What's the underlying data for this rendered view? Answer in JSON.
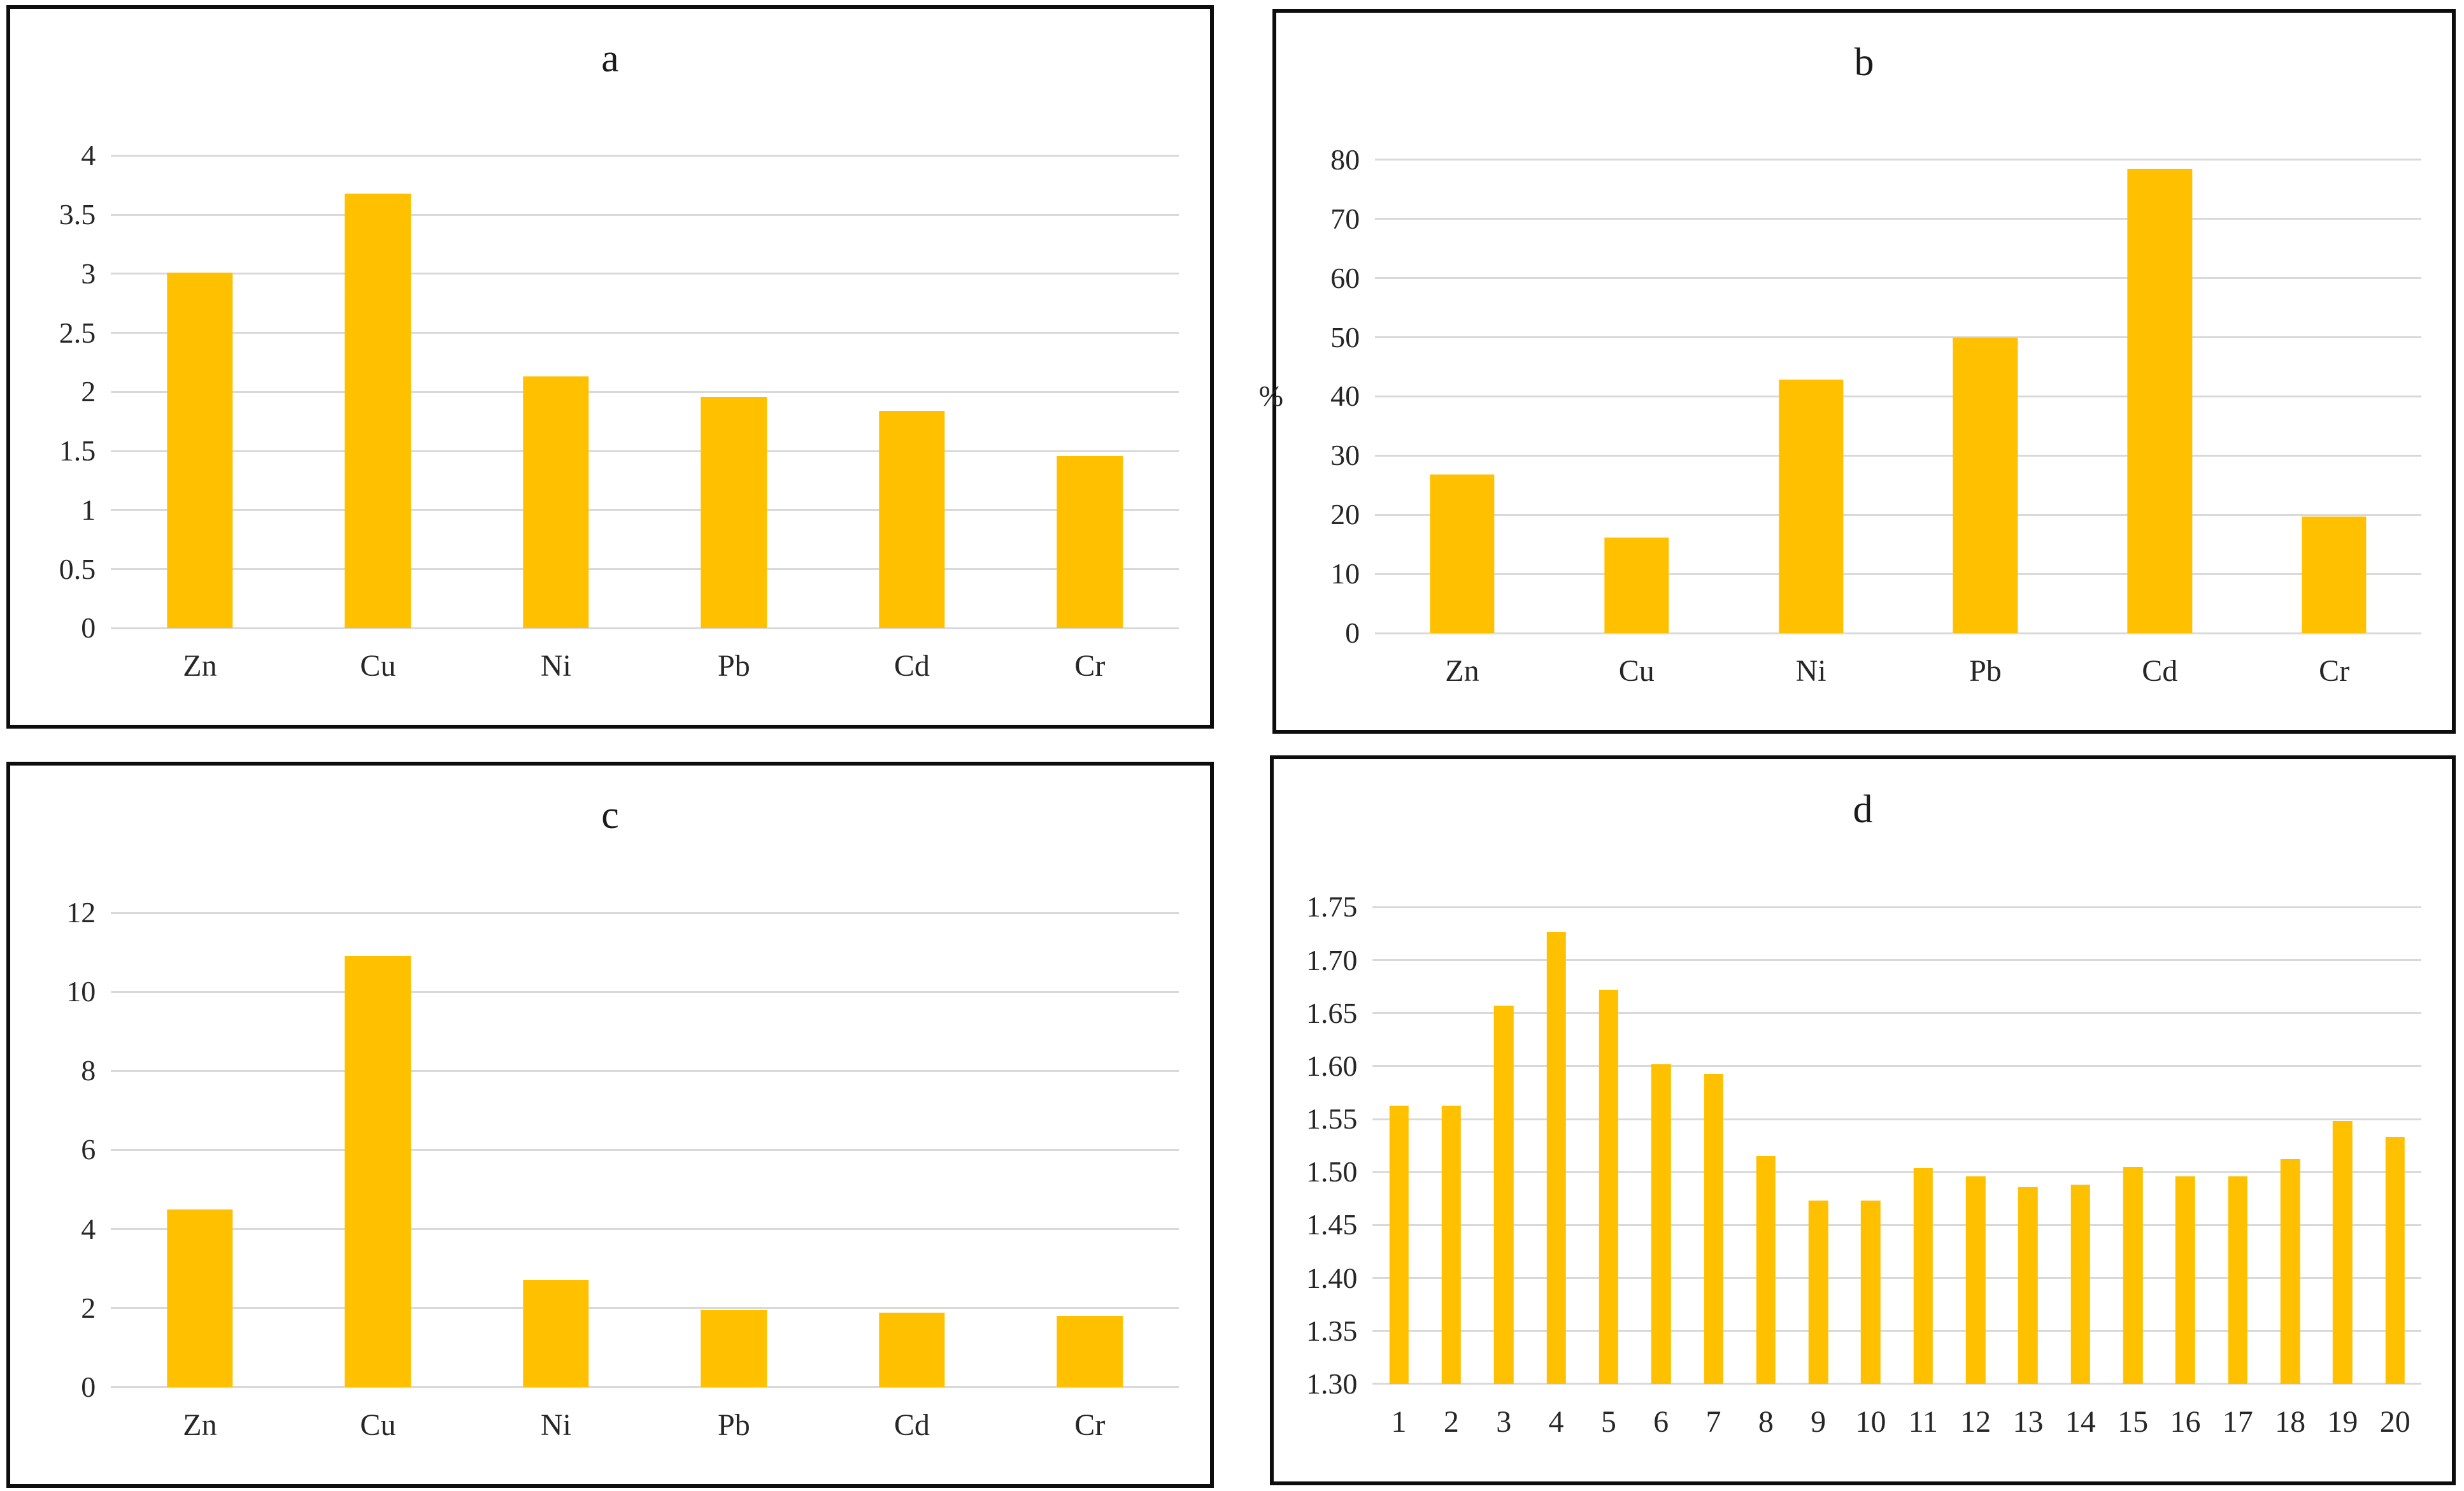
{
  "figure": {
    "panel_count": 4,
    "bar_color": "#FFC000",
    "gridline_color": "#D9D9D9",
    "border_color": "#0D0D0D",
    "background_color": "#FFFFFF"
  },
  "chart_data": [
    {
      "id": "a",
      "type": "bar",
      "title": "a",
      "categories": [
        "Zn",
        "Cu",
        "Ni",
        "Pb",
        "Cd",
        "Cr"
      ],
      "values": [
        3.01,
        3.68,
        2.13,
        1.96,
        1.84,
        1.46
      ],
      "xlabel": "",
      "ylabel": "",
      "ylim": [
        0,
        4
      ],
      "yticks": [
        "0",
        "0.5",
        "1",
        "1.5",
        "2",
        "2.5",
        "3",
        "3.5",
        "4"
      ],
      "grid": true,
      "legend": "none",
      "bar_color": "#FFC000",
      "gridline_color": "#D9D9D9"
    },
    {
      "id": "b",
      "type": "bar",
      "title": "b",
      "categories": [
        "Zn",
        "Cu",
        "Ni",
        "Pb",
        "Cd",
        "Cr"
      ],
      "values": [
        26.8,
        16.1,
        42.8,
        50,
        78.5,
        19.7
      ],
      "xlabel": "",
      "ylabel": "%",
      "ylim": [
        0,
        80
      ],
      "yticks": [
        "0",
        "10",
        "20",
        "30",
        "40",
        "50",
        "60",
        "70",
        "80"
      ],
      "grid": true,
      "legend": "none",
      "bar_color": "#FFC000",
      "gridline_color": "#D9D9D9"
    },
    {
      "id": "c",
      "type": "bar",
      "title": "c",
      "categories": [
        "Zn",
        "Cu",
        "Ni",
        "Pb",
        "Cd",
        "Cr"
      ],
      "values": [
        4.5,
        10.9,
        2.7,
        1.95,
        1.88,
        1.8
      ],
      "xlabel": "",
      "ylabel": "",
      "ylim": [
        0,
        12
      ],
      "yticks": [
        "0",
        "2",
        "4",
        "6",
        "8",
        "10",
        "12"
      ],
      "grid": true,
      "legend": "none",
      "bar_color": "#FFC000",
      "gridline_color": "#D9D9D9"
    },
    {
      "id": "d",
      "type": "bar",
      "title": "d",
      "categories": [
        "1",
        "2",
        "3",
        "4",
        "5",
        "6",
        "7",
        "8",
        "9",
        "10",
        "11",
        "12",
        "13",
        "14",
        "15",
        "16",
        "17",
        "18",
        "19",
        "20"
      ],
      "values": [
        1.563,
        1.563,
        1.657,
        1.727,
        1.672,
        1.602,
        1.593,
        1.515,
        1.473,
        1.473,
        1.504,
        1.496,
        1.486,
        1.488,
        1.505,
        1.496,
        1.496,
        1.512,
        1.548,
        1.533
      ],
      "xlabel": "",
      "ylabel": "",
      "ylim": [
        1.3,
        1.75
      ],
      "yticks": [
        "1.30",
        "1.35",
        "1.40",
        "1.45",
        "1.50",
        "1.55",
        "1.60",
        "1.65",
        "1.70",
        "1.75"
      ],
      "grid": true,
      "legend": "none",
      "bar_color": "#FFC000",
      "gridline_color": "#D9D9D9"
    }
  ]
}
